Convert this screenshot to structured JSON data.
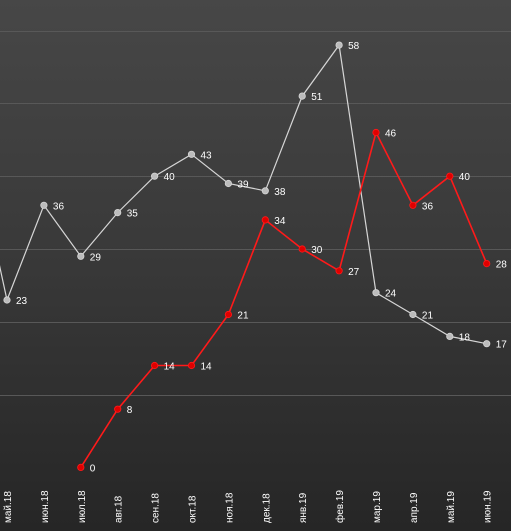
{
  "chart_data": {
    "type": "line",
    "categories": [
      "май.18",
      "июн.18",
      "июл.18",
      "авг.18",
      "сен.18",
      "окт.18",
      "ноя.18",
      "дек.18",
      "янв.19",
      "фев.19",
      "мар.19",
      "апр.19",
      "май.19",
      "июн.19"
    ],
    "x_first_visible_index": -0.3,
    "ylim": [
      -2,
      62
    ],
    "grid": true,
    "series": [
      {
        "color": "#d6d6d6",
        "marker_color": "#bcbcbc",
        "values": [
          23,
          36,
          29,
          35,
          40,
          43,
          39,
          38,
          51,
          58,
          24,
          21,
          18,
          17
        ],
        "offscreen_start_value": 30
      },
      {
        "color": "#ff1a1a",
        "marker_color": "#e00000",
        "values": [
          null,
          null,
          0,
          8,
          14,
          14,
          21,
          34,
          30,
          27,
          46,
          36,
          40,
          28
        ]
      }
    ]
  }
}
